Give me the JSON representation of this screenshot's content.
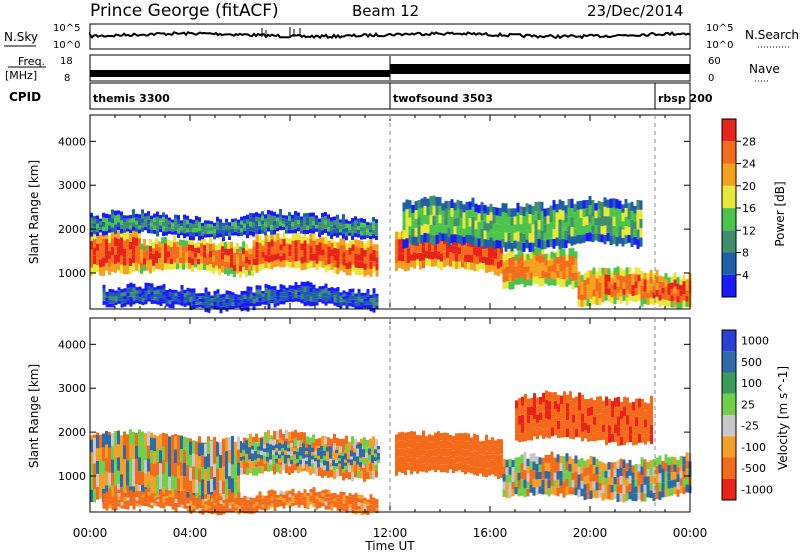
{
  "header": {
    "title": "Prince George (fitACF)",
    "beam": "Beam 12",
    "date": "23/Dec/2014"
  },
  "strip_labels": {
    "nsky": "N.Sky",
    "nsky_top": "10^5",
    "nsky_bottom": "10^0",
    "nsearch": "N.Search",
    "nsearch_top": "10^5",
    "nsearch_bottom": "10^0",
    "freq_line1": "Freq.",
    "freq_line2": "[MHz]",
    "freq_top": "18",
    "freq_bottom": "8",
    "nave_top": "60",
    "nave_bottom": "0",
    "nave": "Nave",
    "cpid": "CPID"
  },
  "cpid_segments": [
    {
      "label": "themis 3300",
      "start_hour": 0
    },
    {
      "label": "twofsound 3503",
      "start_hour": 12
    },
    {
      "label": "rbsp 200",
      "start_hour": 22.6
    }
  ],
  "axes": {
    "xlabel": "Time UT",
    "x_ticks": [
      "00:00",
      "04:00",
      "08:00",
      "12:00",
      "16:00",
      "20:00",
      "00:00"
    ],
    "x_range_hours": [
      0,
      24
    ],
    "ylabel": "Slant Range [km]",
    "y_ticks": [
      1000,
      2000,
      3000,
      4000
    ],
    "y_range_km": [
      180,
      4600
    ]
  },
  "chart_data": [
    {
      "type": "heatmap",
      "name": "Power",
      "colorbar_label": "Power [dB]",
      "colorbar_ticks": [
        "4",
        "8",
        "12",
        "16",
        "20",
        "24",
        "28"
      ],
      "colorbar_colors": [
        "#1a1aff",
        "#1f5fa8",
        "#3f8f6f",
        "#4cc34c",
        "#e8e83a",
        "#f4a21e",
        "#f26c1a",
        "#e8231a"
      ],
      "bands": [
        {
          "t0": 0.0,
          "t1": 2.0,
          "r0": 950,
          "r1": 1900,
          "level": 28
        },
        {
          "t0": 2.0,
          "t1": 6.5,
          "r0": 1000,
          "r1": 1700,
          "level": 26
        },
        {
          "t0": 6.5,
          "t1": 11.5,
          "r0": 1050,
          "r1": 1800,
          "level": 28
        },
        {
          "t0": 12.2,
          "t1": 16.5,
          "r0": 1050,
          "r1": 1900,
          "level": 29
        },
        {
          "t0": 16.5,
          "t1": 19.5,
          "r0": 650,
          "r1": 1450,
          "level": 24
        },
        {
          "t0": 19.5,
          "t1": 24.0,
          "r0": 250,
          "r1": 1000,
          "level": 26
        },
        {
          "t0": 0.0,
          "t1": 11.5,
          "r0": 1850,
          "r1": 2300,
          "level": 10
        },
        {
          "t0": 12.5,
          "t1": 22.0,
          "r0": 1600,
          "r1": 2600,
          "level": 14
        },
        {
          "t0": 0.5,
          "t1": 11.5,
          "r0": 220,
          "r1": 650,
          "level": 6
        }
      ]
    },
    {
      "type": "heatmap",
      "name": "Velocity",
      "colorbar_label": "Velocity [m s^-1]",
      "colorbar_ticks": [
        "1000",
        "500",
        "100",
        "25",
        "-25",
        "-100",
        "-500",
        "-1000"
      ],
      "colorbar_colors": [
        "#2a3fd4",
        "#2f6aa8",
        "#3a9a5a",
        "#6fd04a",
        "#c8c8c8",
        "#f2a02a",
        "#f26a1a",
        "#e8231a"
      ],
      "bands": [
        {
          "t0": 0.0,
          "t1": 11.5,
          "r0": 1000,
          "r1": 1900,
          "level": -100
        },
        {
          "t0": 5.0,
          "t1": 11.5,
          "r0": 1250,
          "r1": 1700,
          "level": 100
        },
        {
          "t0": 12.2,
          "t1": 16.5,
          "r0": 1050,
          "r1": 1900,
          "level": -300
        },
        {
          "t0": 16.5,
          "t1": 24.0,
          "r0": 500,
          "r1": 1400,
          "level": 0
        },
        {
          "t0": 0.0,
          "t1": 6.0,
          "r0": 400,
          "r1": 1900,
          "level": 0
        },
        {
          "t0": 17.0,
          "t1": 22.5,
          "r0": 1800,
          "r1": 2800,
          "level": -400
        },
        {
          "t0": 0.5,
          "t1": 11.5,
          "r0": 220,
          "r1": 600,
          "level": -200
        }
      ]
    }
  ]
}
